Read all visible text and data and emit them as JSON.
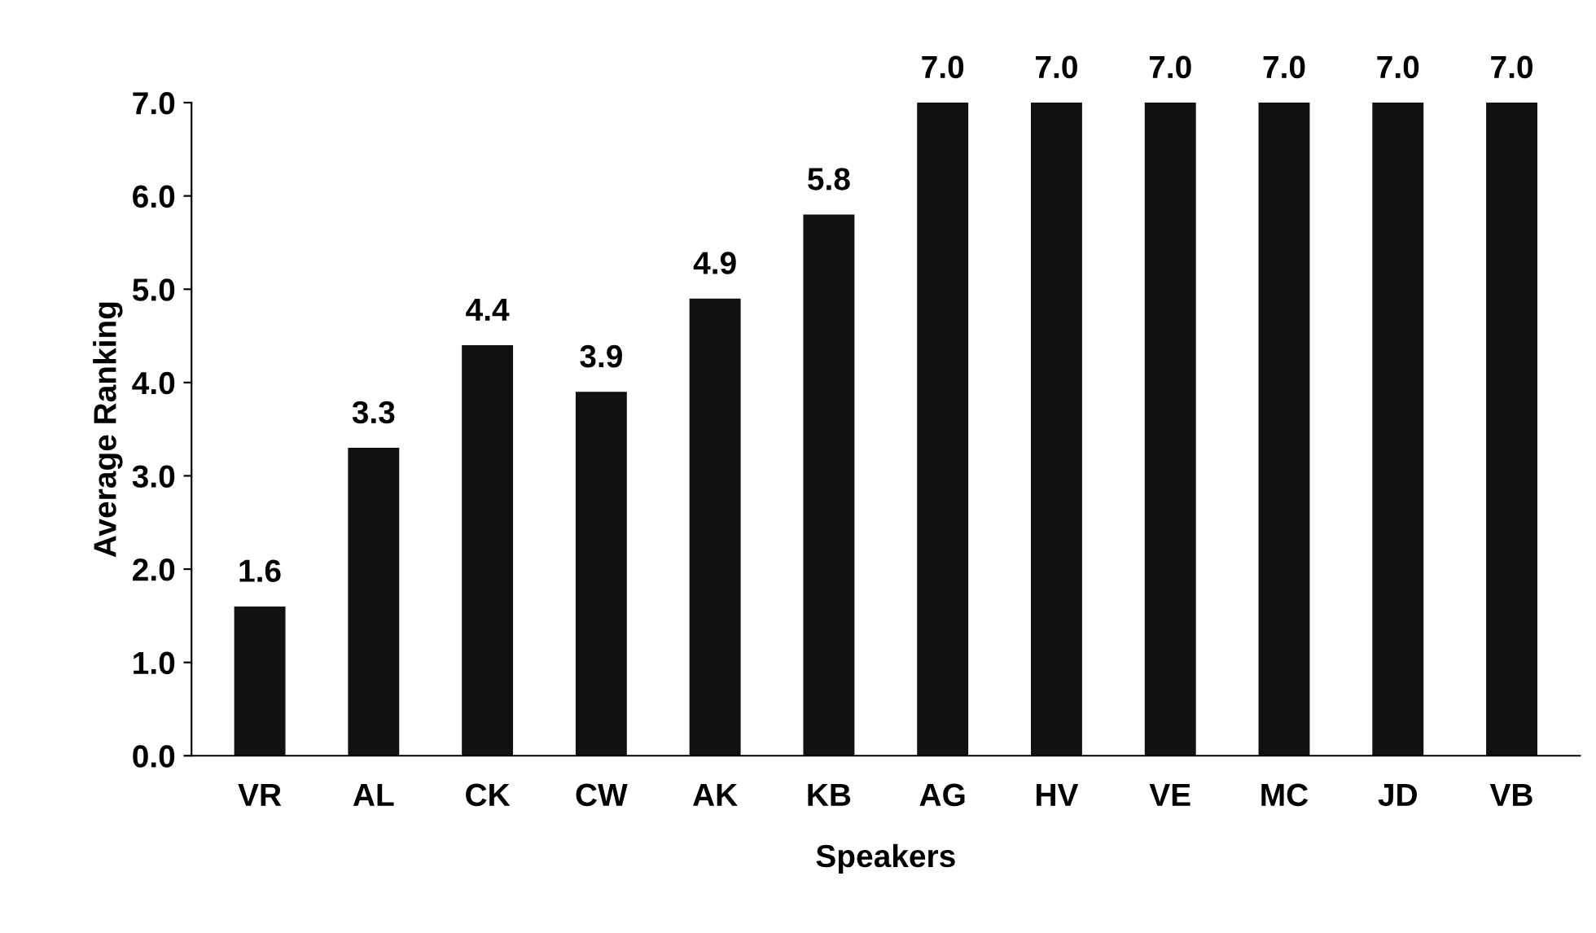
{
  "chart_data": {
    "type": "bar",
    "xlabel": "Speakers",
    "ylabel": "Average Ranking",
    "categories": [
      "VR",
      "AL",
      "CK",
      "CW",
      "AK",
      "KB",
      "AG",
      "HV",
      "VE",
      "MC",
      "JD",
      "VB"
    ],
    "values": [
      1.6,
      3.3,
      4.4,
      3.9,
      4.9,
      5.8,
      7.0,
      7.0,
      7.0,
      7.0,
      7.0,
      7.0
    ],
    "value_labels": [
      "1.6",
      "3.3",
      "4.4",
      "3.9",
      "4.9",
      "5.8",
      "7.0",
      "7.0",
      "7.0",
      "7.0",
      "7.0",
      "7.0"
    ],
    "color": "#111111",
    "ylim": [
      0,
      7
    ],
    "yticks": [
      {
        "value": 0,
        "label": "0.0"
      },
      {
        "value": 1,
        "label": "1.0"
      },
      {
        "value": 2,
        "label": "2.0"
      },
      {
        "value": 3,
        "label": "3.0"
      },
      {
        "value": 4,
        "label": "4.0"
      },
      {
        "value": 5,
        "label": "5.0"
      },
      {
        "value": 6,
        "label": "6.0"
      },
      {
        "value": 7,
        "label": "7.0"
      }
    ],
    "grid": false,
    "legend": false
  }
}
